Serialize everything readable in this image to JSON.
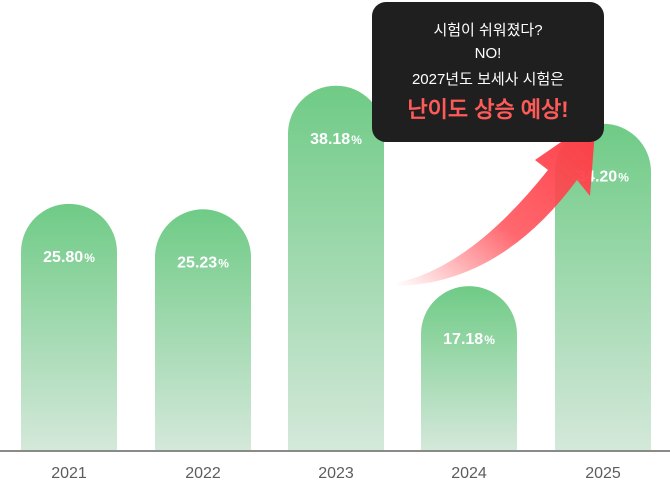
{
  "chart_data": {
    "type": "bar",
    "categories": [
      "2021",
      "2022",
      "2023",
      "2024",
      "2025"
    ],
    "values": [
      25.8,
      25.23,
      38.18,
      17.18,
      34.2
    ],
    "value_labels": [
      "25.80",
      "25.23",
      "38.18",
      "17.18",
      "34.20"
    ],
    "unit": "%",
    "title": "",
    "xlabel": "",
    "ylabel": "",
    "ylim": [
      0,
      43.5
    ],
    "grid": false,
    "legend": "none"
  },
  "callout": {
    "line1": "시험이 쉬워졌다?",
    "line2": "NO!",
    "line3": "2027년도 보세사 시험은",
    "highlight": "난이도 상승 예상!"
  },
  "colors": {
    "bar_top": "#6fcb86",
    "bar_bottom": "#d4e8da",
    "axis": "#8a8a8a",
    "callout_bg": "#1f1f1f",
    "highlight": "#ff5a5a",
    "arrow": "#ff4d55"
  }
}
